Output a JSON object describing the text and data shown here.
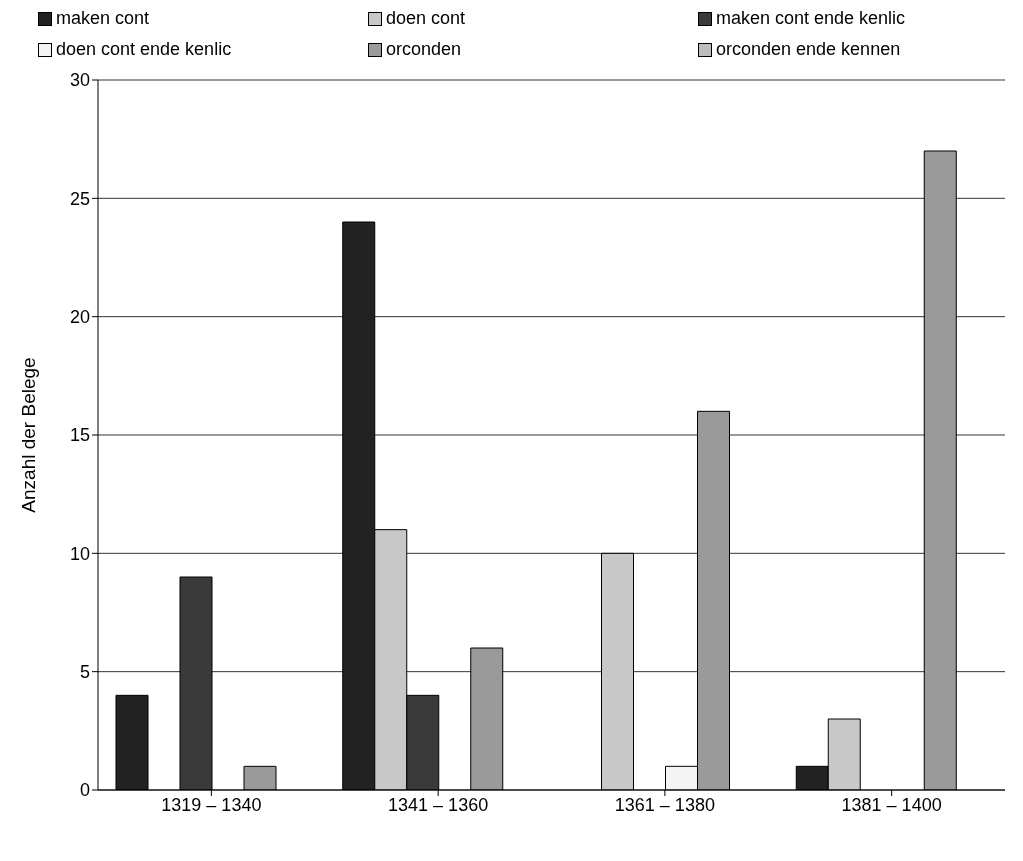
{
  "chart_data": {
    "type": "bar",
    "ylabel": "Anzahl der Belege",
    "categories": [
      "1319 – 1340",
      "1341 – 1360",
      "1361 – 1380",
      "1381 – 1400"
    ],
    "series": [
      {
        "name": "maken cont",
        "color": "#222222",
        "values": [
          4,
          24,
          0,
          1
        ]
      },
      {
        "name": "doen cont",
        "color": "#c8c8c8",
        "values": [
          0,
          11,
          10,
          3
        ]
      },
      {
        "name": "maken cont ende kenlic",
        "color": "#3a3a3a",
        "values": [
          9,
          4,
          0,
          0
        ]
      },
      {
        "name": "doen cont ende kenlic",
        "color": "#f4f4f4",
        "values": [
          0,
          0,
          1,
          0
        ]
      },
      {
        "name": "orconden",
        "color": "#9a9a9a",
        "values": [
          1,
          6,
          16,
          27
        ]
      },
      {
        "name": "orconden ende kennen",
        "color": "#bdbdbd",
        "values": [
          0,
          0,
          0,
          0
        ]
      }
    ],
    "ylim": [
      0,
      30
    ],
    "yticks": [
      0,
      5,
      10,
      15,
      20,
      25,
      30
    ],
    "grid": "y",
    "legend": "top"
  }
}
